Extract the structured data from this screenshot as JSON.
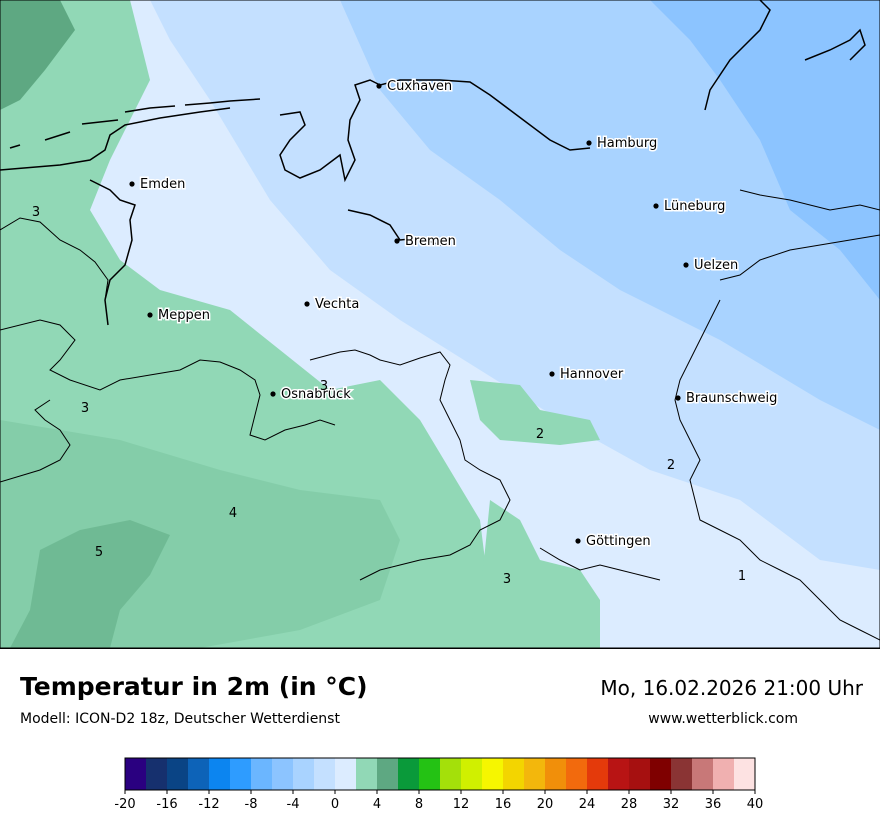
{
  "header": {
    "title": "Temperatur in 2m (in °C)",
    "model": "Modell: ICON-D2 18z, Deutscher Wetterdienst",
    "datetime": "Mo, 16.02.2026 21:00 Uhr",
    "website": "www.wetterblick.com"
  },
  "map": {
    "cities": [
      {
        "name": "Cuxhaven"
      },
      {
        "name": "Hamburg"
      },
      {
        "name": "Emden"
      },
      {
        "name": "Lüneburg"
      },
      {
        "name": "Bremen"
      },
      {
        "name": "Uelzen"
      },
      {
        "name": "Vechta"
      },
      {
        "name": "Meppen"
      },
      {
        "name": "Hannover"
      },
      {
        "name": "Osnabrück"
      },
      {
        "name": "Braunschweig"
      },
      {
        "name": "Göttingen"
      }
    ],
    "isolines": [
      "3",
      "3",
      "3",
      "4",
      "5",
      "2",
      "2",
      "3",
      "1"
    ]
  },
  "legend": {
    "unit": "°C",
    "min": -20,
    "max": 40,
    "step": 2,
    "colors": [
      "#2a0080",
      "#16306e",
      "#0a4485",
      "#0d63b8",
      "#0c85f0",
      "#2e9cff",
      "#6bb6ff",
      "#8cc4ff",
      "#a9d3ff",
      "#c4e0ff",
      "#dcecff",
      "#91d8b6",
      "#5ea882",
      "#0a9a3a",
      "#24c214",
      "#a4e00a",
      "#d0f000",
      "#f6f600",
      "#f3d500",
      "#f3b70c",
      "#f18f0a",
      "#f26a0d",
      "#e43a0b",
      "#b81414",
      "#a61010",
      "#7f0000",
      "#8a3434",
      "#c87878",
      "#f0b0b0",
      "#fde2e2"
    ],
    "ticks": [
      "-20",
      "-16",
      "-12",
      "-8",
      "-4",
      "0",
      "4",
      "8",
      "12",
      "16",
      "20",
      "24",
      "28",
      "32",
      "36",
      "40"
    ]
  },
  "colors": {
    "very_cold": "#8cc4ff",
    "cold": "#a9d3ff",
    "cool": "#c4e0ff",
    "near_zero": "#dcecff",
    "mild": "#91d8b6",
    "warm": "#5ea882"
  }
}
